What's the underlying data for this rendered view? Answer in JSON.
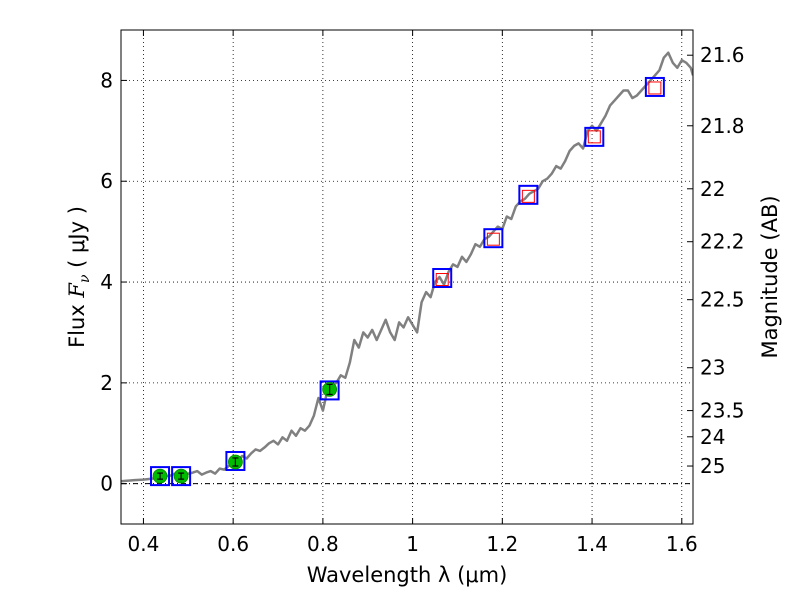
{
  "chart_data": {
    "type": "line",
    "title": "",
    "xlabel": "Wavelength  λ (μm)",
    "ylabel_prefix": "Flux  ",
    "ylabel_symbol": "F",
    "ylabel_sub": "ν",
    "ylabel_units": "  ( μJy )",
    "y2label": "Magnitude (AB)",
    "xlim": [
      0.35,
      1.625
    ],
    "ylim": [
      -0.8,
      9.0
    ],
    "grid": true,
    "x_ticks": [
      0.4,
      0.6,
      0.8,
      1.0,
      1.2,
      1.4,
      1.6
    ],
    "x_tick_labels": [
      "0.4",
      "0.6",
      "0.8",
      "1",
      "1.2",
      "1.4",
      "1.6"
    ],
    "y_ticks": [
      0,
      2,
      4,
      6,
      8
    ],
    "y_tick_labels": [
      "0",
      "2",
      "4",
      "6",
      "8"
    ],
    "mag_ticks": [
      {
        "label": "21.6",
        "flux": 8.5
      },
      {
        "label": "21.8",
        "flux": 7.1
      },
      {
        "label": "22",
        "flux": 5.85
      },
      {
        "label": "22.2",
        "flux": 4.8
      },
      {
        "label": "22.5",
        "flux": 3.65
      },
      {
        "label": "23",
        "flux": 2.3
      },
      {
        "label": "23.5",
        "flux": 1.45
      },
      {
        "label": "24",
        "flux": 0.93
      },
      {
        "label": "25",
        "flux": 0.35
      }
    ],
    "zero_line": 0,
    "series": [
      {
        "name": "model spectrum",
        "color": "#808080",
        "x": [
          0.35,
          0.38,
          0.4,
          0.42,
          0.44,
          0.46,
          0.47,
          0.48,
          0.49,
          0.5,
          0.51,
          0.52,
          0.53,
          0.54,
          0.55,
          0.56,
          0.57,
          0.58,
          0.59,
          0.6,
          0.61,
          0.62,
          0.63,
          0.64,
          0.65,
          0.66,
          0.67,
          0.68,
          0.69,
          0.7,
          0.71,
          0.72,
          0.73,
          0.74,
          0.75,
          0.76,
          0.77,
          0.78,
          0.79,
          0.8,
          0.81,
          0.82,
          0.83,
          0.84,
          0.85,
          0.86,
          0.87,
          0.88,
          0.89,
          0.9,
          0.91,
          0.92,
          0.93,
          0.94,
          0.95,
          0.96,
          0.97,
          0.98,
          0.99,
          1.0,
          1.01,
          1.02,
          1.03,
          1.04,
          1.05,
          1.06,
          1.07,
          1.08,
          1.09,
          1.1,
          1.11,
          1.12,
          1.13,
          1.14,
          1.15,
          1.16,
          1.17,
          1.18,
          1.19,
          1.2,
          1.21,
          1.22,
          1.23,
          1.24,
          1.25,
          1.26,
          1.27,
          1.28,
          1.29,
          1.3,
          1.31,
          1.32,
          1.33,
          1.34,
          1.35,
          1.36,
          1.37,
          1.38,
          1.39,
          1.4,
          1.41,
          1.42,
          1.43,
          1.44,
          1.45,
          1.46,
          1.47,
          1.48,
          1.49,
          1.5,
          1.51,
          1.52,
          1.53,
          1.54,
          1.55,
          1.56,
          1.57,
          1.58,
          1.59,
          1.6,
          1.61,
          1.62,
          1.625
        ],
        "y": [
          0.05,
          0.07,
          0.08,
          0.1,
          0.14,
          0.16,
          0.2,
          0.18,
          0.12,
          0.2,
          0.22,
          0.25,
          0.18,
          0.22,
          0.25,
          0.2,
          0.3,
          0.28,
          0.35,
          0.4,
          0.45,
          0.55,
          0.5,
          0.6,
          0.68,
          0.65,
          0.72,
          0.8,
          0.85,
          0.78,
          0.92,
          0.85,
          1.05,
          0.95,
          1.1,
          1.05,
          1.15,
          1.35,
          1.7,
          1.45,
          1.85,
          1.95,
          2.0,
          2.15,
          2.1,
          2.4,
          2.85,
          2.7,
          3.0,
          2.9,
          3.05,
          2.85,
          3.05,
          3.25,
          3.0,
          2.85,
          3.2,
          3.1,
          3.3,
          3.15,
          3.0,
          3.6,
          3.8,
          3.7,
          4.0,
          4.1,
          3.95,
          4.2,
          4.35,
          4.3,
          4.5,
          4.4,
          4.55,
          4.75,
          4.7,
          4.85,
          4.9,
          5.0,
          5.1,
          5.05,
          5.3,
          5.25,
          5.5,
          5.6,
          5.65,
          5.75,
          5.8,
          5.85,
          6.0,
          6.05,
          6.15,
          6.3,
          6.25,
          6.4,
          6.6,
          6.7,
          6.75,
          6.65,
          7.0,
          7.1,
          7.0,
          7.15,
          7.3,
          7.5,
          7.6,
          7.7,
          7.8,
          7.8,
          7.65,
          7.7,
          7.8,
          7.9,
          8.0,
          8.1,
          8.2,
          8.45,
          8.55,
          8.35,
          8.25,
          8.4,
          8.35,
          8.25,
          8.1
        ]
      }
    ],
    "photometry_squares": {
      "color": "#0000ff",
      "x": [
        0.437,
        0.484,
        0.605,
        0.815,
        1.066,
        1.18,
        1.258,
        1.405,
        1.54
      ],
      "y": [
        0.15,
        0.15,
        0.45,
        1.85,
        4.08,
        4.87,
        5.73,
        6.88,
        7.87
      ]
    },
    "model_squares": {
      "color": "#ff0000",
      "x": [
        1.066,
        1.18,
        1.258,
        1.405,
        1.54
      ],
      "y": [
        4.05,
        4.85,
        5.7,
        6.88,
        7.85
      ]
    },
    "measured_points": {
      "color": "#00bb00",
      "x": [
        0.437,
        0.484,
        0.605,
        0.815
      ],
      "y": [
        0.15,
        0.15,
        0.43,
        1.87
      ],
      "err": [
        0.06,
        0.06,
        0.08,
        0.1
      ]
    }
  }
}
